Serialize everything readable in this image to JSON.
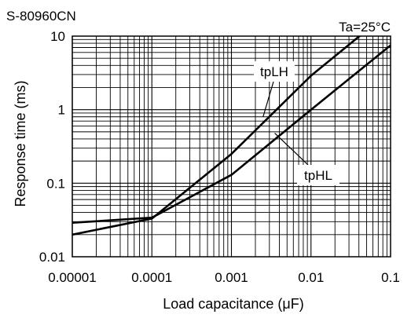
{
  "chart_data": {
    "type": "line",
    "title": "S-80960CN",
    "condition": "Ta=25°C",
    "xlabel": "Load capacitance (μF)",
    "ylabel": "Response time (ms)",
    "x_scale": "log",
    "y_scale": "log",
    "xlim": [
      1e-05,
      0.1
    ],
    "ylim": [
      0.01,
      10
    ],
    "grid": true,
    "x_ticks": [
      {
        "value": 1e-05,
        "label": "0.00001"
      },
      {
        "value": 0.0001,
        "label": "0.0001"
      },
      {
        "value": 0.001,
        "label": "0.001"
      },
      {
        "value": 0.01,
        "label": "0.01"
      },
      {
        "value": 0.1,
        "label": "0.1"
      }
    ],
    "y_ticks": [
      {
        "value": 0.01,
        "label": "0.01"
      },
      {
        "value": 0.1,
        "label": "0.1"
      },
      {
        "value": 1,
        "label": "1"
      },
      {
        "value": 10,
        "label": "10"
      }
    ],
    "series": [
      {
        "name": "tpLH",
        "x": [
          1e-05,
          0.0001,
          0.001,
          0.01,
          0.05
        ],
        "y": [
          0.02,
          0.033,
          0.25,
          2.9,
          12
        ]
      },
      {
        "name": "tpHL",
        "x": [
          1e-05,
          0.0001,
          0.001,
          0.01,
          0.1
        ],
        "y": [
          0.029,
          0.034,
          0.13,
          1.0,
          7.5
        ]
      }
    ],
    "annotations": [
      {
        "text": "tpLH",
        "points_to": "tpLH",
        "at_x": 0.0025,
        "at_y": 0.8
      },
      {
        "text": "tpHL",
        "points_to": "tpHL",
        "at_x": 0.0035,
        "at_y": 0.48
      }
    ]
  }
}
